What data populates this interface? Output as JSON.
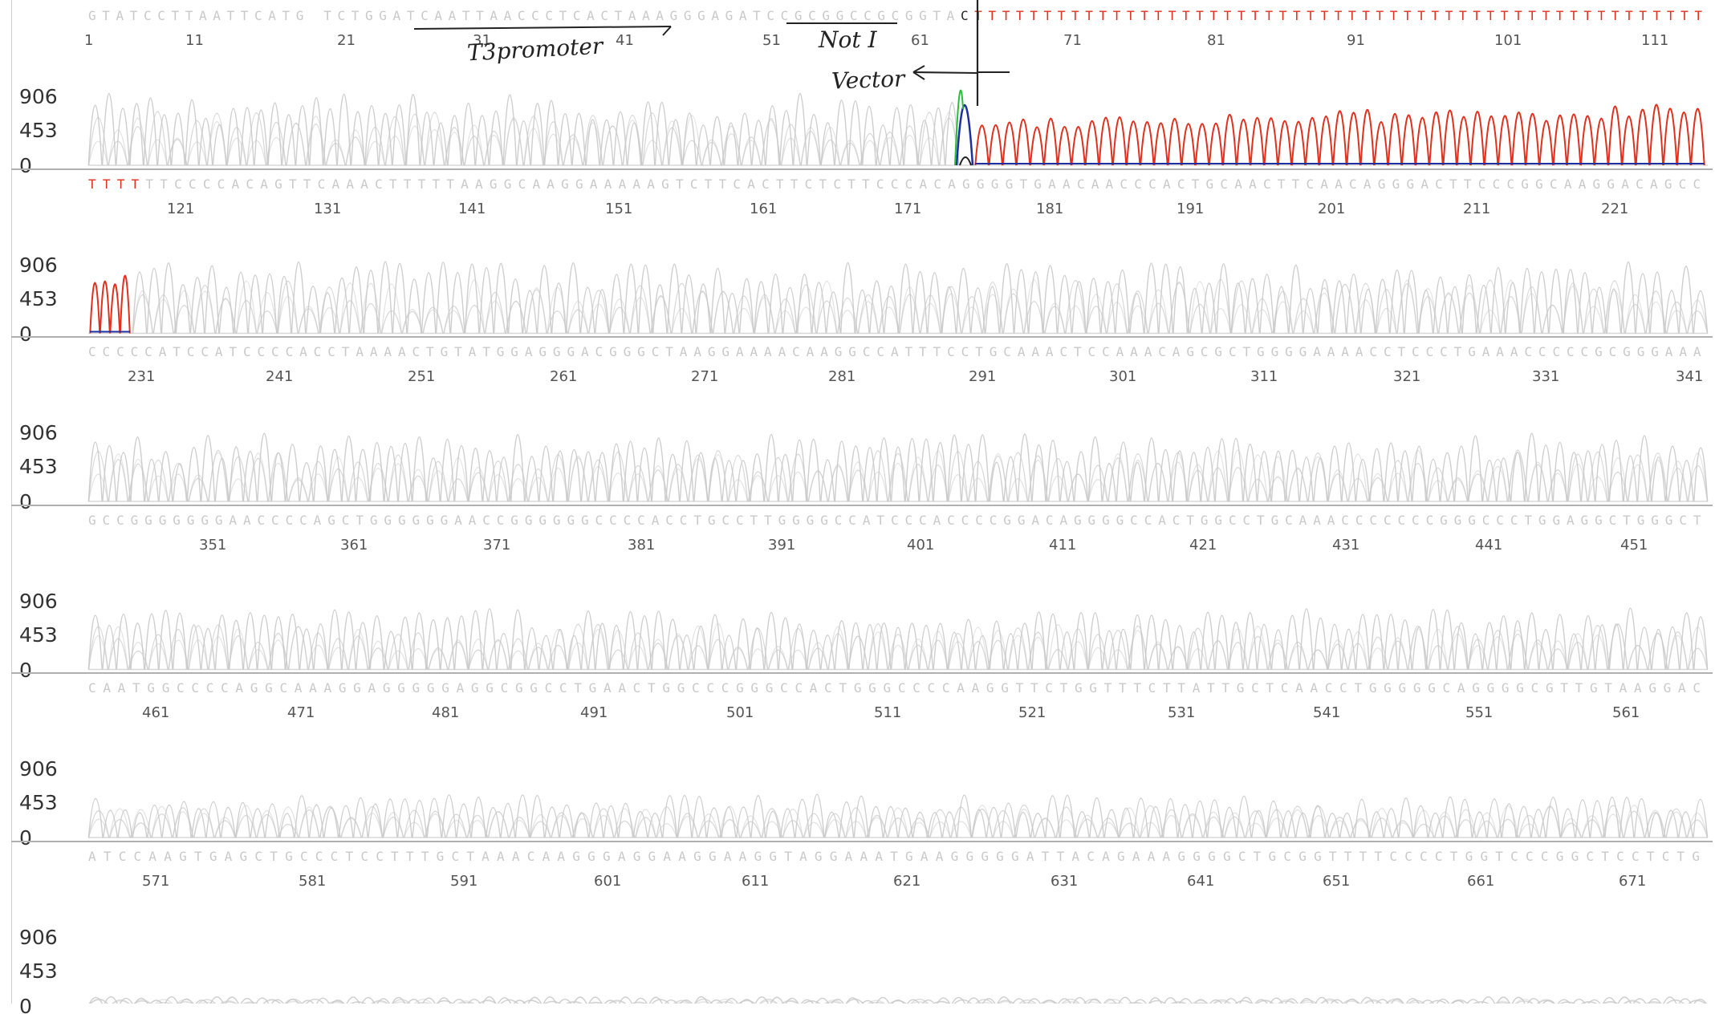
{
  "y_ticks": [
    "906",
    "453",
    "0"
  ],
  "annotations": {
    "promoter": "T3promoter",
    "site": "Not I",
    "vector": "Vector"
  },
  "colors": {
    "T": "#e0301e",
    "faint": "#c9c9c9",
    "A": "#2bbd3a",
    "C": "#1f2fa0",
    "G": "#222222",
    "annotation": "#222222"
  },
  "chart_data": {
    "type": "line",
    "title": "",
    "xlabel": "",
    "ylabel": "",
    "ylim": [
      0,
      906
    ],
    "grid": false,
    "legend": "none",
    "rows": [
      {
        "sequence_faint": "GTATCCTTAATTCATG TCTGGATCAATTAACCCTCACTAAAGGGAGATCCGCGGCCGCGGTA",
        "sequence_bold_C": "C",
        "sequence_red": "TTTTTTTTTTTTTTTTTTTTTTTTTTTTTTTTTTTTTTTTTTTTTTTTTTTTT",
        "positions": [
          "1",
          "11",
          "21",
          "31",
          "41",
          "51",
          "61",
          "71",
          "81",
          "91",
          "101",
          "111"
        ]
      },
      {
        "sequence_red": "TTTT",
        "sequence_faint": "TTCCCCACAGTTCAAACTTTTTAAGGCAAGGAAAAAGTCTTCACTTCTCTTCCCACAGGGGTGAACAACCCACTGCAACTTCAACAGGGACTTCCCGGCAAGGACAGCC",
        "positions": [
          "121",
          "131",
          "141",
          "151",
          "161",
          "171",
          "181",
          "191",
          "201",
          "211",
          "221"
        ]
      },
      {
        "sequence_faint": "CCCCCATCCATCCCCACCTAAAACTGTATGGAGGGACGGGCTAAGGAAAACAAGGCCATTTCCTGCAAACTCCAAACAGCGCTGGGGAAAACCTCCCTGAAACCCCCGCGGGAAA",
        "positions": [
          "231",
          "241",
          "251",
          "261",
          "271",
          "281",
          "291",
          "301",
          "311",
          "321",
          "331",
          "341"
        ]
      },
      {
        "sequence_faint": "GCCGGGGGGGAACCCCAGCTGGGGGGAACCGGGGGGCCCCACCTGCCTTGGGGCCATCCCACCCCGGACAGGGGCCACTGGCCTGCAAACCCCCCCGGGCCCTGGAGGCTGGGCT",
        "positions": [
          "351",
          "361",
          "371",
          "381",
          "391",
          "401",
          "411",
          "421",
          "431",
          "441",
          "451"
        ]
      },
      {
        "sequence_faint": "CAATGGCCCCAGGCAAAGGAGGGGGAGGCGGCCTGAACTGGCCCGGGCCACTGGGCCCCAAGGTTCTGGTTTCTTATTGCTCAACCTGGGGGCAGGGGCGTTGTAAGGAC",
        "positions": [
          "461",
          "471",
          "481",
          "491",
          "501",
          "511",
          "521",
          "531",
          "541",
          "551",
          "561"
        ]
      },
      {
        "sequence_faint": "ATCCAAGTGAGCTGCCCTCCTTTGCTAAACAAGGGAGGAAGGAAGGTAGGAAATGAAGGGGGATTACAGAAAGGGGCTGCGGTTTTCCCCTGGTCCCGGCTCCTCTG",
        "positions": [
          "571",
          "581",
          "591",
          "601",
          "611",
          "621",
          "631",
          "641",
          "651",
          "661",
          "671"
        ]
      }
    ]
  }
}
